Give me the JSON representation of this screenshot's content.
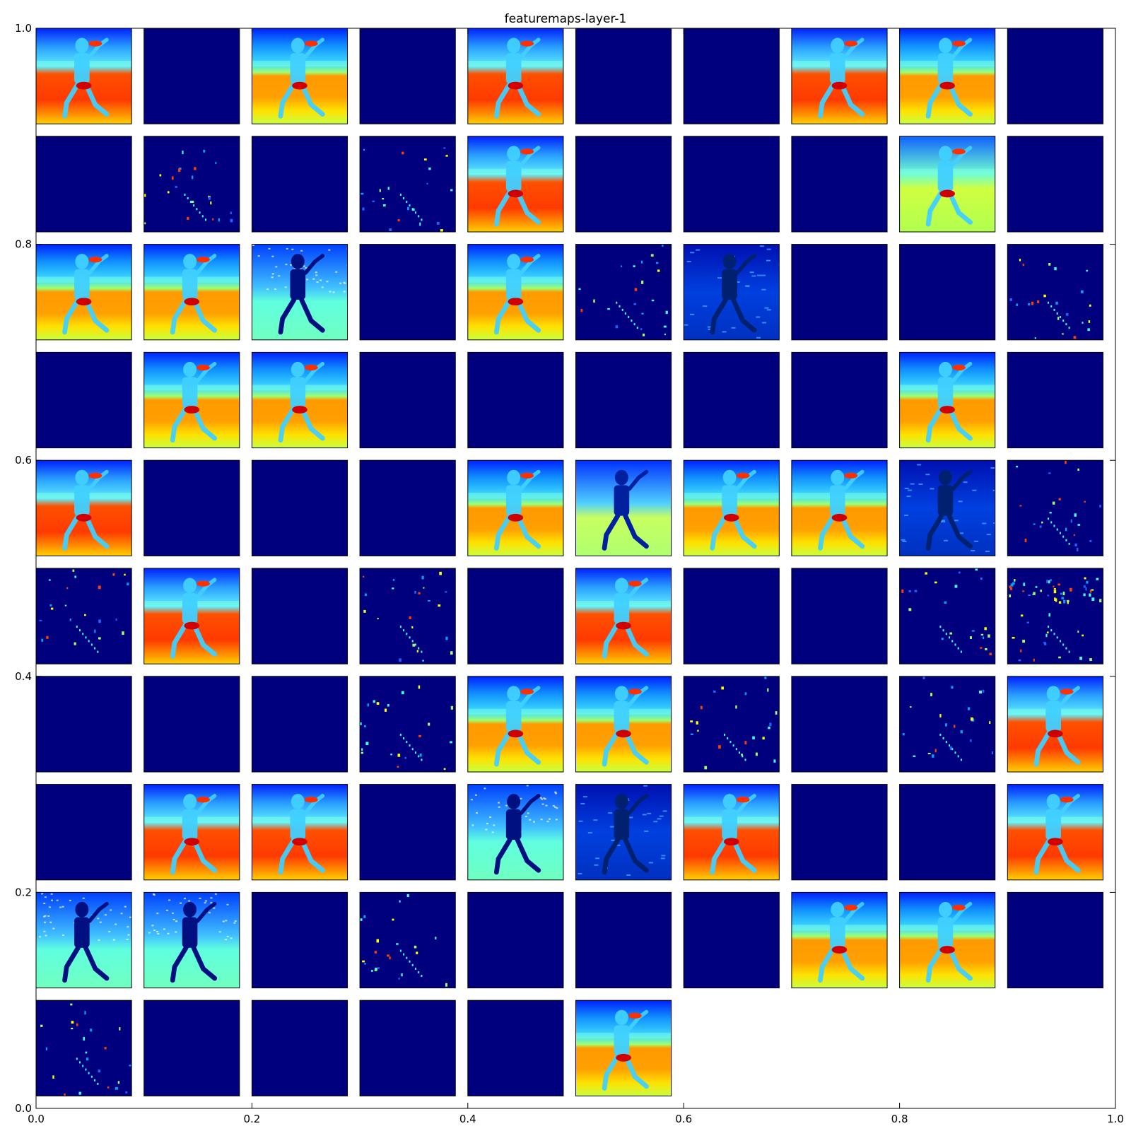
{
  "chart_data": {
    "type": "image-grid",
    "title": "featuremaps-layer-1",
    "xlabel": "",
    "ylabel": "",
    "xlim": [
      0,
      1
    ],
    "ylim": [
      0,
      1
    ],
    "x_ticks": [
      "0.0",
      "0.2",
      "0.4",
      "0.6",
      "0.8",
      "1.0"
    ],
    "y_ticks": [
      "0.0",
      "0.2",
      "0.4",
      "0.6",
      "0.8",
      "1.0"
    ],
    "grid": false,
    "legend": "none",
    "colormap": "jet",
    "grid_columns": 10,
    "grid_rows": 10,
    "tile_count": 96,
    "activation_levels": [
      "scene-warm",
      "blank",
      "scene",
      "blank",
      "scene-warm",
      "blank",
      "blank",
      "scene-warm",
      "scene",
      "blank",
      "blank",
      "sparse",
      "blank",
      "sparse",
      "scene-warm",
      "blank",
      "blank",
      "blank",
      "scene-green",
      "blank",
      "scene",
      "scene",
      "edge-cyan",
      "blank",
      "scene",
      "sparse",
      "edge-blue",
      "blank",
      "blank",
      "sparse",
      "blank",
      "scene",
      "scene",
      "blank",
      "blank",
      "blank",
      "blank",
      "blank",
      "scene",
      "blank",
      "scene-warm",
      "blank",
      "blank",
      "blank",
      "scene",
      "edge-green",
      "scene",
      "scene",
      "edge-blue",
      "sparse",
      "sparse",
      "scene-warm",
      "blank",
      "sparse",
      "blank",
      "scene-warm",
      "blank",
      "blank",
      "sparse",
      "sparse-dense",
      "blank",
      "blank",
      "blank",
      "sparse",
      "scene",
      "scene",
      "sparse",
      "blank",
      "sparse",
      "scene-warm",
      "blank",
      "scene-warm",
      "scene-warm",
      "blank",
      "edge-cyan",
      "edge-blue",
      "scene-warm",
      "blank",
      "blank",
      "scene-warm",
      "edge-cyan",
      "edge-cyan",
      "blank",
      "sparse",
      "blank",
      "blank",
      "blank",
      "scene",
      "scene",
      "blank",
      "sparse",
      "blank",
      "blank",
      "blank",
      "blank",
      "scene"
    ],
    "colors": {
      "background_low": "#00007f",
      "jet_stops": [
        "#00007f",
        "#0000ff",
        "#007fff",
        "#00ffff",
        "#7fff7f",
        "#ffff00",
        "#ff7f00",
        "#ff0000",
        "#7f0000"
      ]
    }
  }
}
